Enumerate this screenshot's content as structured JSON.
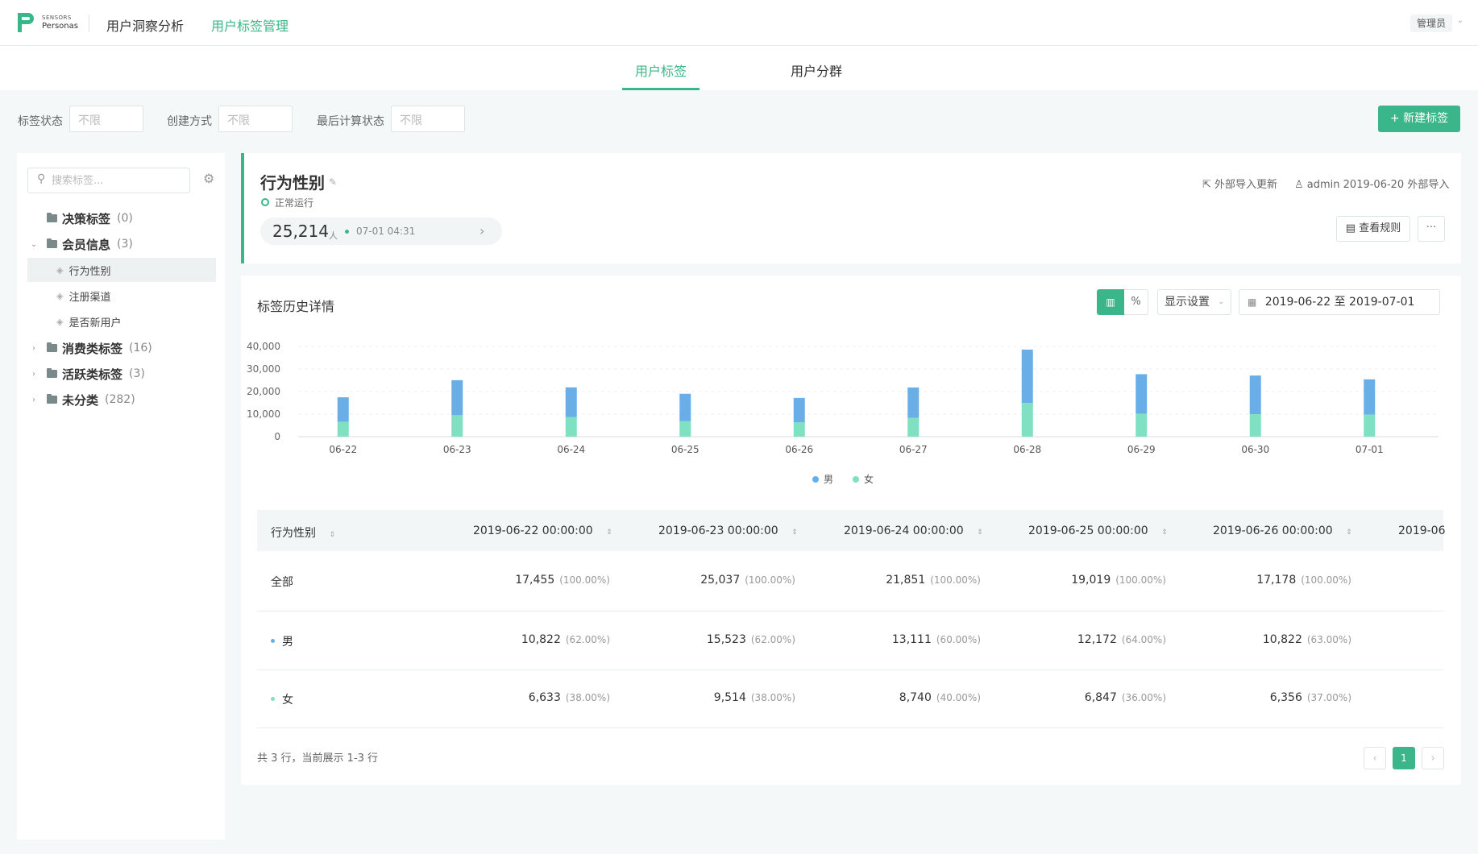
{
  "header": {
    "logo_small": "SENSORS",
    "logo_big": "Personas",
    "nav_analysis": "用户洞察分析",
    "nav_tagmgr": "用户标签管理",
    "admin_label": "管理员",
    "admin_caret": "⌄"
  },
  "tabs": {
    "tags": "用户标签",
    "groups": "用户分群"
  },
  "filters": {
    "status_label": "标签状态",
    "status_value": "不限",
    "method_label": "创建方式",
    "method_value": "不限",
    "calc_label": "最后计算状态",
    "calc_value": "不限",
    "new_tag_label": "+ 新建标签"
  },
  "sidebar": {
    "search_icon": "⚲",
    "search_placeholder": "搜索标签...",
    "gear_icon": "⚙",
    "folders": [
      {
        "caret": "",
        "name": "决策标签",
        "count": "(0)"
      },
      {
        "caret": "⌄",
        "name": "会员信息",
        "count": "(3)"
      },
      {
        "caret": "›",
        "name": "消费类标签",
        "count": "(16)"
      },
      {
        "caret": "›",
        "name": "活跃类标签",
        "count": "(3)"
      },
      {
        "caret": "›",
        "name": "未分类",
        "count": "(282)"
      }
    ],
    "leaves": [
      {
        "icon": "◈",
        "name": "行为性别"
      },
      {
        "icon": "◈",
        "name": "注册渠道"
      },
      {
        "icon": "◈",
        "name": "是否新用户"
      }
    ]
  },
  "tag": {
    "title": "行为性别",
    "edit_icon": "✎",
    "status": "正常运行",
    "count": "25,214",
    "count_unit": "人",
    "count_time": "07-01 04:31",
    "count_arrow": "›",
    "ext_update": "⇱ 外部导入更新",
    "creator": "♙ admin 2019-06-20 外部导入",
    "view_rule": "▤ 查看规则",
    "more": "···"
  },
  "history": {
    "title": "标签历史详情",
    "chart_btn": "▥",
    "percent_btn": "%",
    "display_settings": "显示设置",
    "display_caret": "⌄",
    "date_icon": "▦",
    "date_range": "2019-06-22 至 2019-07-01"
  },
  "chart_data": {
    "type": "bar",
    "stacked": true,
    "categories": [
      "06-22",
      "06-23",
      "06-24",
      "06-25",
      "06-26",
      "06-27",
      "06-28",
      "06-29",
      "06-30",
      "07-01"
    ],
    "series": [
      {
        "name": "男",
        "color": "#6aaee8",
        "values": [
          10822,
          15523,
          13111,
          12172,
          10822,
          13400,
          23600,
          17500,
          17100,
          15600
        ]
      },
      {
        "name": "女",
        "color": "#7fe0c2",
        "values": [
          6633,
          9514,
          8740,
          6847,
          6356,
          8400,
          15000,
          10200,
          10000,
          9800
        ]
      }
    ],
    "ylim": [
      0,
      40000
    ],
    "yticks": [
      "0",
      "10,000",
      "20,000",
      "30,000",
      "40,000"
    ],
    "grid": true,
    "legend": "bottom-center"
  },
  "table": {
    "headers": [
      "行为性别",
      "2019-06-22 00:00:00",
      "2019-06-23 00:00:00",
      "2019-06-24 00:00:00",
      "2019-06-25 00:00:00",
      "2019-06-26 00:00:00",
      "2019-06"
    ],
    "sort_icon": "⇕",
    "rows": [
      {
        "label": "全部",
        "dot": "",
        "cells": [
          {
            "v": "17,455",
            "p": "(100.00%)"
          },
          {
            "v": "25,037",
            "p": "(100.00%)"
          },
          {
            "v": "21,851",
            "p": "(100.00%)"
          },
          {
            "v": "19,019",
            "p": "(100.00%)"
          },
          {
            "v": "17,178",
            "p": "(100.00%)"
          }
        ]
      },
      {
        "label": "男",
        "dot": "#6aaee8",
        "cells": [
          {
            "v": "10,822",
            "p": "(62.00%)"
          },
          {
            "v": "15,523",
            "p": "(62.00%)"
          },
          {
            "v": "13,111",
            "p": "(60.00%)"
          },
          {
            "v": "12,172",
            "p": "(64.00%)"
          },
          {
            "v": "10,822",
            "p": "(63.00%)"
          }
        ]
      },
      {
        "label": "女",
        "dot": "#7fe0c2",
        "cells": [
          {
            "v": "6,633",
            "p": "(38.00%)"
          },
          {
            "v": "9,514",
            "p": "(38.00%)"
          },
          {
            "v": "8,740",
            "p": "(40.00%)"
          },
          {
            "v": "6,847",
            "p": "(36.00%)"
          },
          {
            "v": "6,356",
            "p": "(37.00%)"
          }
        ]
      }
    ],
    "summary": "共 3 行，当前展示 1-3 行",
    "pager_prev": "‹",
    "pager_current": "1",
    "pager_next": "›"
  }
}
